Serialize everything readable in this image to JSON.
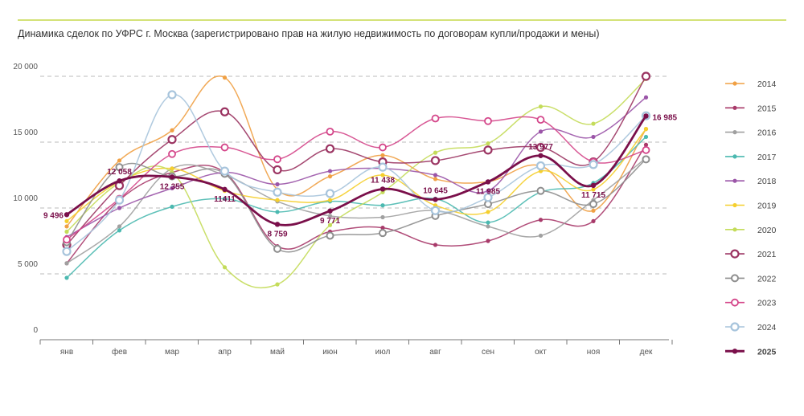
{
  "chart_data": {
    "type": "line",
    "title": "Динамика сделок по УФРС г. Москва (зарегистрировано прав на жилую недвижимость по договорам купли/продажи и мены)",
    "categories": [
      "янв",
      "фев",
      "мар",
      "апр",
      "май",
      "июн",
      "июл",
      "авг",
      "сен",
      "окт",
      "ноя",
      "дек"
    ],
    "ylim": [
      0,
      20000
    ],
    "yticks": [
      {
        "value": 0,
        "label": "0"
      },
      {
        "value": 5000,
        "label": "5 000"
      },
      {
        "value": 10000,
        "label": "10 000"
      },
      {
        "value": 15000,
        "label": "15 000"
      },
      {
        "value": 20000,
        "label": "20 000"
      }
    ],
    "xlabel": "",
    "ylabel": "",
    "grid": "horizontal dashed",
    "legend_position": "right",
    "series": [
      {
        "name": "2014",
        "color": "#f0a044",
        "values": [
          8600,
          13600,
          15900,
          19900,
          11400,
          12400,
          14000,
          12200,
          12000,
          13200,
          9800,
          16000
        ]
      },
      {
        "name": "2015",
        "color": "#a83a6a",
        "values": [
          5800,
          10600,
          12700,
          12700,
          7100,
          8200,
          8500,
          7200,
          7500,
          9100,
          9000,
          14800
        ]
      },
      {
        "name": "2016",
        "color": "#a0a0a0",
        "values": [
          5800,
          8600,
          13000,
          12500,
          10500,
          9400,
          9300,
          9800,
          8600,
          7900,
          10600,
          13800
        ]
      },
      {
        "name": "2017",
        "color": "#4bb9b0",
        "values": [
          4700,
          8300,
          10100,
          10700,
          9700,
          10500,
          10200,
          10700,
          8900,
          11200,
          11900,
          15400
        ]
      },
      {
        "name": "2018",
        "color": "#9b55a8",
        "values": [
          7800,
          10000,
          11500,
          12700,
          11800,
          12800,
          13000,
          12500,
          11300,
          15800,
          15400,
          18400
        ]
      },
      {
        "name": "2019",
        "color": "#f5cf2e",
        "values": [
          9000,
          12000,
          13000,
          11300,
          10600,
          10600,
          12500,
          10200,
          9700,
          12800,
          11400,
          16000
        ]
      },
      {
        "name": "2020",
        "color": "#c4dc5a",
        "values": [
          8200,
          11900,
          12700,
          5500,
          4200,
          8700,
          11200,
          14200,
          14900,
          17700,
          16400,
          19800
        ]
      },
      {
        "name": "2021",
        "color": "#9b3462",
        "values": [
          7200,
          11700,
          15200,
          17300,
          12900,
          14500,
          13500,
          13600,
          14400,
          14600,
          13500,
          20000
        ]
      },
      {
        "name": "2022",
        "color": "#8e8e8e",
        "values": [
          7400,
          13100,
          12400,
          12600,
          6900,
          7900,
          8100,
          9400,
          10300,
          11300,
          10300,
          13700
        ]
      },
      {
        "name": "2023",
        "color": "#d4468a",
        "values": [
          7600,
          10700,
          14100,
          14600,
          13700,
          15800,
          14600,
          16800,
          16600,
          16700,
          13500,
          14400
        ]
      },
      {
        "name": "2024",
        "color": "#a7c4dc",
        "values": [
          6700,
          10600,
          18600,
          12800,
          11200,
          11100,
          13100,
          9800,
          10800,
          13200,
          13300,
          17000
        ]
      },
      {
        "name": "2025",
        "color": "#7a0f4a",
        "values": [
          9496,
          12058,
          12355,
          11411,
          8759,
          9771,
          11438,
          10645,
          11985,
          13977,
          11715,
          16985
        ]
      }
    ],
    "data_labels": {
      "series": "2025",
      "labels": [
        "9 496",
        "12 058",
        "12 355",
        "11411",
        "8 759",
        "9 771",
        "11 438",
        "10 645",
        "11 985",
        "13 977",
        "11 715",
        "16 985"
      ]
    }
  }
}
